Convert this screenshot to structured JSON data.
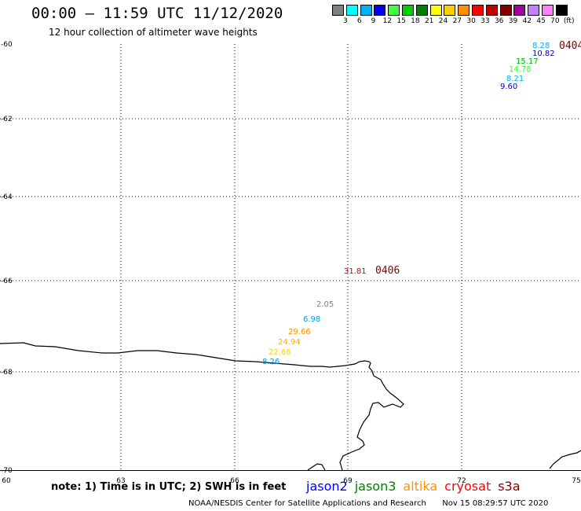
{
  "header": {
    "title": "00:00 – 11:59 UTC 11/12/2020",
    "subtitle": "12 hour collection of altimeter wave heights"
  },
  "scale": {
    "colors": [
      "#808080",
      "#00ffff",
      "#00b0f0",
      "#0000ff",
      "#40ff40",
      "#00d000",
      "#008000",
      "#ffff00",
      "#ffd000",
      "#ff9000",
      "#ff0000",
      "#c00000",
      "#800000",
      "#a000a0",
      "#c080ff",
      "#ff80ff",
      "#000000"
    ],
    "labels": [
      "3",
      "6",
      "9",
      "12",
      "15",
      "18",
      "21",
      "24",
      "27",
      "30",
      "33",
      "36",
      "39",
      "42",
      "45",
      "70",
      "(ft)"
    ]
  },
  "map": {
    "lat_labels": [
      "-60",
      "-62",
      "-64",
      "-66",
      "-68",
      "-70"
    ],
    "lon_labels": [
      "60",
      "63",
      "66",
      "69",
      "72",
      "75"
    ]
  },
  "observations": [
    {
      "value": "8.28",
      "color": "#00b0f0"
    },
    {
      "value": "10.82",
      "color": "#0000c0"
    },
    {
      "value": "15.17",
      "color": "#00b000"
    },
    {
      "value": "14.78",
      "color": "#40ff40"
    },
    {
      "value": "8.21",
      "color": "#00b0f0"
    },
    {
      "value": "9.60",
      "color": "#0000c0"
    },
    {
      "value": "31.81",
      "color": "#d00000"
    },
    {
      "value": "2.05",
      "color": "#808080"
    },
    {
      "value": "6.98",
      "color": "#00a0e0"
    },
    {
      "value": "29.66",
      "color": "#ff9000"
    },
    {
      "value": "24.94",
      "color": "#ffb000"
    },
    {
      "value": "22.66",
      "color": "#ffd000"
    },
    {
      "value": "8.26",
      "color": "#00a0e0"
    }
  ],
  "time_labels": [
    "0404",
    "0406"
  ],
  "footer": {
    "note": "note: 1) Time is in UTC; 2) SWH is in feet",
    "satellites": [
      {
        "name": "jason2",
        "color": "#0000ff"
      },
      {
        "name": "jason3",
        "color": "#008000"
      },
      {
        "name": "altika",
        "color": "#ff9000"
      },
      {
        "name": "cryosat",
        "color": "#ff0000"
      },
      {
        "name": "s3a",
        "color": "#800000"
      }
    ],
    "credit": "NOAA/NESDIS Center for Satellite Applications and Research",
    "timestamp": "Nov 15 08:29:57 UTC 2020"
  }
}
